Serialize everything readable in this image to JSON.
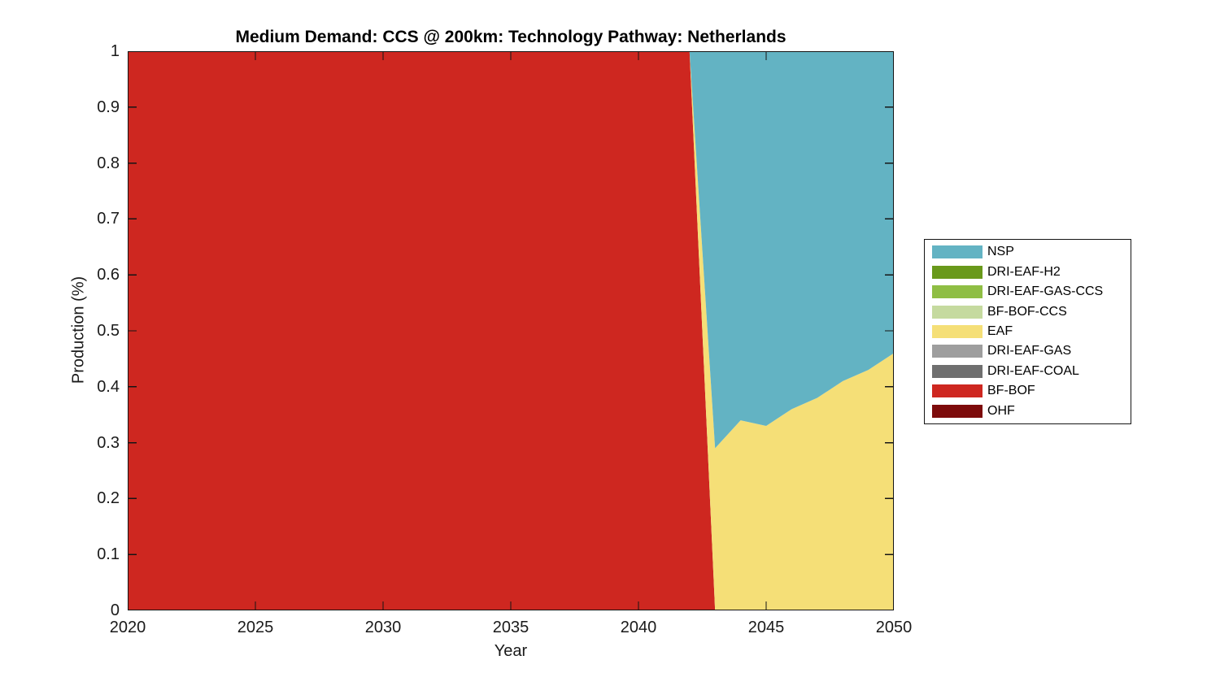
{
  "page": {
    "background_color": "#ffffff",
    "text_color": "#1a1a1a"
  },
  "chart_data": {
    "type": "area",
    "stacked": true,
    "title": "Medium Demand: CCS @ 200km: Technology Pathway: Netherlands",
    "xlabel": "Year",
    "ylabel": "Production (%)",
    "xlim": [
      2020,
      2050
    ],
    "ylim": [
      0,
      1
    ],
    "grid": false,
    "axis_color": "#151515",
    "tick_direction": "in",
    "legend_position": "right-outside",
    "xticks": [
      2020,
      2025,
      2030,
      2035,
      2040,
      2045,
      2050
    ],
    "xtick_labels": [
      "2020",
      "2025",
      "2030",
      "2035",
      "2040",
      "2045",
      "2050"
    ],
    "yticks": [
      0,
      0.1,
      0.2,
      0.3,
      0.4,
      0.5,
      0.6,
      0.7,
      0.8,
      0.9,
      1
    ],
    "ytick_labels": [
      "0",
      "0.1",
      "0.2",
      "0.3",
      "0.4",
      "0.5",
      "0.6",
      "0.7",
      "0.8",
      "0.9",
      "1"
    ],
    "x": [
      2020,
      2021,
      2022,
      2023,
      2024,
      2025,
      2026,
      2027,
      2028,
      2029,
      2030,
      2031,
      2032,
      2033,
      2034,
      2035,
      2036,
      2037,
      2038,
      2039,
      2040,
      2041,
      2042,
      2043,
      2044,
      2045,
      2046,
      2047,
      2048,
      2049,
      2050
    ],
    "stack_order": [
      "OHF",
      "BF-BOF",
      "DRI-EAF-COAL",
      "DRI-EAF-GAS",
      "EAF",
      "BF-BOF-CCS",
      "DRI-EAF-GAS-CCS",
      "DRI-EAF-H2",
      "NSP"
    ],
    "series": [
      {
        "name": "NSP",
        "color": "#63B3C3",
        "values": [
          0,
          0,
          0,
          0,
          0,
          0,
          0,
          0,
          0,
          0,
          0,
          0,
          0,
          0,
          0,
          0,
          0,
          0,
          0,
          0,
          0,
          0,
          0,
          0.71,
          0.66,
          0.67,
          0.64,
          0.62,
          0.59,
          0.57,
          0.54
        ]
      },
      {
        "name": "DRI-EAF-H2",
        "color": "#69991B",
        "values": [
          0,
          0,
          0,
          0,
          0,
          0,
          0,
          0,
          0,
          0,
          0,
          0,
          0,
          0,
          0,
          0,
          0,
          0,
          0,
          0,
          0,
          0,
          0,
          0,
          0,
          0,
          0,
          0,
          0,
          0,
          0
        ]
      },
      {
        "name": "DRI-EAF-GAS-CCS",
        "color": "#8FBE44",
        "values": [
          0,
          0,
          0,
          0,
          0,
          0,
          0,
          0,
          0,
          0,
          0,
          0,
          0,
          0,
          0,
          0,
          0,
          0,
          0,
          0,
          0,
          0,
          0,
          0,
          0,
          0,
          0,
          0,
          0,
          0,
          0
        ]
      },
      {
        "name": "BF-BOF-CCS",
        "color": "#C5DA9F",
        "values": [
          0,
          0,
          0,
          0,
          0,
          0,
          0,
          0,
          0,
          0,
          0,
          0,
          0,
          0,
          0,
          0,
          0,
          0,
          0,
          0,
          0,
          0,
          0,
          0,
          0,
          0,
          0,
          0,
          0,
          0,
          0
        ]
      },
      {
        "name": "EAF",
        "color": "#F5DF77",
        "values": [
          0,
          0,
          0,
          0,
          0,
          0,
          0,
          0,
          0,
          0,
          0,
          0,
          0,
          0,
          0,
          0,
          0,
          0,
          0,
          0,
          0,
          0,
          0,
          0.29,
          0.34,
          0.33,
          0.36,
          0.38,
          0.41,
          0.43,
          0.46
        ]
      },
      {
        "name": "DRI-EAF-GAS",
        "color": "#9E9E9E",
        "values": [
          0,
          0,
          0,
          0,
          0,
          0,
          0,
          0,
          0,
          0,
          0,
          0,
          0,
          0,
          0,
          0,
          0,
          0,
          0,
          0,
          0,
          0,
          0,
          0,
          0,
          0,
          0,
          0,
          0,
          0,
          0
        ]
      },
      {
        "name": "DRI-EAF-COAL",
        "color": "#6F6F6F",
        "values": [
          0,
          0,
          0,
          0,
          0,
          0,
          0,
          0,
          0,
          0,
          0,
          0,
          0,
          0,
          0,
          0,
          0,
          0,
          0,
          0,
          0,
          0,
          0,
          0,
          0,
          0,
          0,
          0,
          0,
          0,
          0
        ]
      },
      {
        "name": "BF-BOF",
        "color": "#CE2720",
        "values": [
          1,
          1,
          1,
          1,
          1,
          1,
          1,
          1,
          1,
          1,
          1,
          1,
          1,
          1,
          1,
          1,
          1,
          1,
          1,
          1,
          1,
          1,
          1,
          0,
          0,
          0,
          0,
          0,
          0,
          0,
          0
        ]
      },
      {
        "name": "OHF",
        "color": "#7D0B0B",
        "values": [
          0,
          0,
          0,
          0,
          0,
          0,
          0,
          0,
          0,
          0,
          0,
          0,
          0,
          0,
          0,
          0,
          0,
          0,
          0,
          0,
          0,
          0,
          0,
          0,
          0,
          0,
          0,
          0,
          0,
          0,
          0
        ]
      }
    ],
    "legend": {
      "entries": [
        {
          "label": "NSP",
          "color": "#63B3C3"
        },
        {
          "label": "DRI-EAF-H2",
          "color": "#69991B"
        },
        {
          "label": "DRI-EAF-GAS-CCS",
          "color": "#8FBE44"
        },
        {
          "label": "BF-BOF-CCS",
          "color": "#C5DA9F"
        },
        {
          "label": "EAF",
          "color": "#F5DF77"
        },
        {
          "label": "DRI-EAF-GAS",
          "color": "#9E9E9E"
        },
        {
          "label": "DRI-EAF-COAL",
          "color": "#6F6F6F"
        },
        {
          "label": "BF-BOF",
          "color": "#CE2720"
        },
        {
          "label": "OHF",
          "color": "#7D0B0B"
        }
      ]
    }
  }
}
